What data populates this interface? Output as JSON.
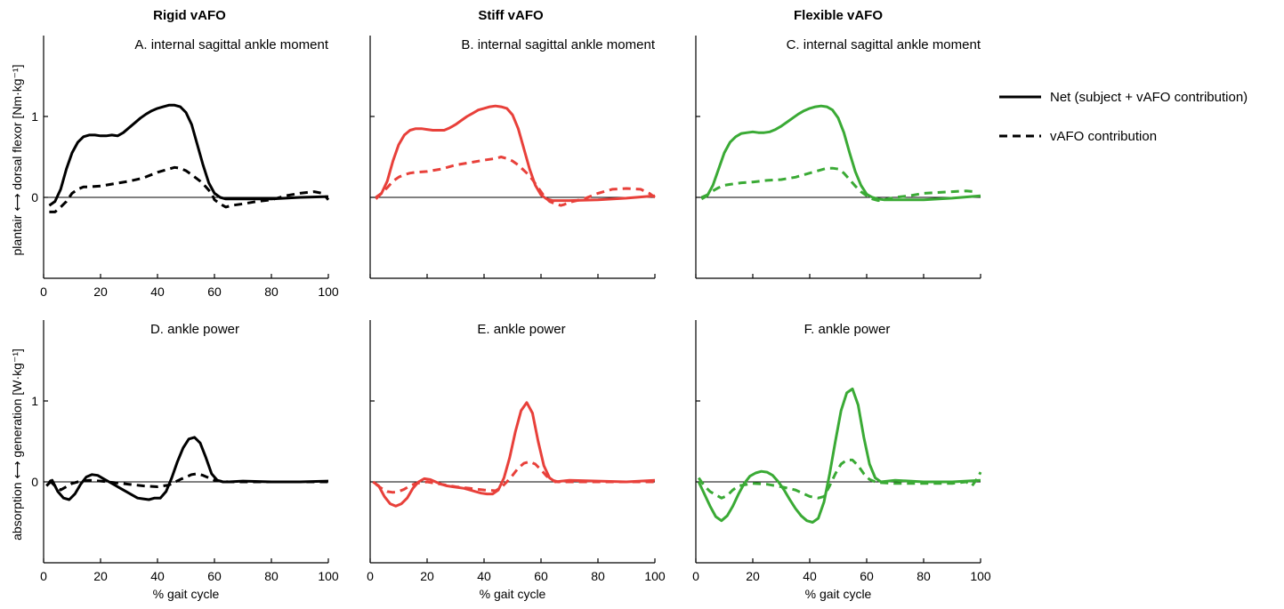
{
  "column_titles": [
    "Rigid vAFO",
    "Stiff vAFO",
    "Flexible vAFO"
  ],
  "row_ylabels": [
    "plantair ⟷ dorsal flexor [Nm·kg⁻¹]",
    "absorption ⟷ generation [W·kg⁻¹]"
  ],
  "legend": [
    {
      "label": "Net (subject + vAFO contribution)",
      "style": "solid"
    },
    {
      "label": "vAFO contribution",
      "style": "dashed"
    }
  ],
  "colors": {
    "rigid": "#000000",
    "stiff": "#e8403a",
    "flexible": "#3aaa35"
  },
  "chart_data": [
    {
      "type": "line",
      "panel": "A",
      "title": "A. internal sagittal ankle moment",
      "column": 0,
      "row": 0,
      "color": "#000000",
      "xlabel": "",
      "xlim": [
        0,
        100
      ],
      "ylim": [
        -1,
        2
      ],
      "xticks": [
        0,
        20,
        40,
        60,
        80,
        100
      ],
      "yticks": [
        0,
        1
      ],
      "series": [
        {
          "name": "Net (subject + vAFO contribution)",
          "style": "solid",
          "x": [
            2,
            4,
            6,
            8,
            10,
            12,
            14,
            16,
            18,
            20,
            22,
            24,
            26,
            28,
            30,
            32,
            34,
            36,
            38,
            40,
            42,
            44,
            46,
            48,
            50,
            52,
            54,
            56,
            58,
            60,
            62,
            64,
            70,
            80,
            90,
            100
          ],
          "y": [
            -0.1,
            -0.05,
            0.1,
            0.35,
            0.55,
            0.68,
            0.75,
            0.77,
            0.77,
            0.76,
            0.76,
            0.77,
            0.76,
            0.8,
            0.86,
            0.92,
            0.98,
            1.03,
            1.07,
            1.1,
            1.12,
            1.14,
            1.14,
            1.12,
            1.05,
            0.9,
            0.65,
            0.4,
            0.18,
            0.05,
            0.0,
            -0.02,
            -0.02,
            -0.02,
            0.0,
            0.01
          ]
        },
        {
          "name": "vAFO contribution",
          "style": "dashed",
          "x": [
            2,
            4,
            6,
            8,
            10,
            12,
            14,
            16,
            20,
            25,
            30,
            35,
            40,
            44,
            46,
            48,
            50,
            52,
            55,
            57,
            59,
            60,
            62,
            64,
            66,
            70,
            75,
            80,
            85,
            90,
            95,
            98,
            100
          ],
          "y": [
            -0.18,
            -0.18,
            -0.12,
            -0.05,
            0.05,
            0.1,
            0.13,
            0.13,
            0.14,
            0.17,
            0.2,
            0.24,
            0.31,
            0.35,
            0.37,
            0.36,
            0.33,
            0.28,
            0.2,
            0.13,
            0.05,
            -0.03,
            -0.08,
            -0.12,
            -0.1,
            -0.08,
            -0.05,
            -0.03,
            0.02,
            0.05,
            0.07,
            0.05,
            -0.03
          ]
        }
      ]
    },
    {
      "type": "line",
      "panel": "B",
      "title": "B. internal sagittal ankle moment",
      "column": 1,
      "row": 0,
      "color": "#e8403a",
      "xlabel": "",
      "xlim": [
        0,
        100
      ],
      "ylim": [
        -1,
        2
      ],
      "xticks": [],
      "yticks": [],
      "series": [
        {
          "name": "Net (subject + vAFO contribution)",
          "style": "solid",
          "x": [
            2,
            4,
            6,
            8,
            10,
            12,
            14,
            16,
            18,
            20,
            22,
            24,
            26,
            28,
            30,
            32,
            34,
            36,
            38,
            40,
            42,
            44,
            46,
            48,
            50,
            52,
            54,
            56,
            58,
            60,
            62,
            64,
            70,
            80,
            90,
            100
          ],
          "y": [
            0.0,
            0.05,
            0.2,
            0.45,
            0.65,
            0.77,
            0.83,
            0.85,
            0.85,
            0.84,
            0.83,
            0.83,
            0.83,
            0.86,
            0.9,
            0.95,
            1.0,
            1.04,
            1.08,
            1.1,
            1.12,
            1.13,
            1.12,
            1.1,
            1.02,
            0.85,
            0.6,
            0.35,
            0.15,
            0.03,
            -0.02,
            -0.04,
            -0.04,
            -0.03,
            -0.01,
            0.02
          ]
        },
        {
          "name": "vAFO contribution",
          "style": "dashed",
          "x": [
            2,
            4,
            6,
            8,
            10,
            12,
            14,
            16,
            20,
            25,
            30,
            35,
            40,
            44,
            46,
            48,
            50,
            52,
            55,
            57,
            59,
            61,
            63,
            65,
            67,
            68,
            70,
            75,
            80,
            85,
            90,
            95,
            98,
            100
          ],
          "y": [
            -0.02,
            0.05,
            0.12,
            0.2,
            0.25,
            0.28,
            0.3,
            0.31,
            0.32,
            0.35,
            0.4,
            0.43,
            0.46,
            0.48,
            0.5,
            0.48,
            0.45,
            0.4,
            0.3,
            0.22,
            0.12,
            0.02,
            -0.05,
            -0.08,
            -0.1,
            -0.09,
            -0.06,
            -0.02,
            0.05,
            0.1,
            0.11,
            0.1,
            0.05,
            0.0
          ]
        }
      ]
    },
    {
      "type": "line",
      "panel": "C",
      "title": "C. internal sagittal ankle moment",
      "column": 2,
      "row": 0,
      "color": "#3aaa35",
      "xlabel": "",
      "xlim": [
        0,
        100
      ],
      "ylim": [
        -1,
        2
      ],
      "xticks": [],
      "yticks": [],
      "series": [
        {
          "name": "Net (subject + vAFO contribution)",
          "style": "solid",
          "x": [
            2,
            4,
            6,
            8,
            10,
            12,
            14,
            16,
            18,
            20,
            22,
            24,
            26,
            28,
            30,
            32,
            34,
            36,
            38,
            40,
            42,
            44,
            46,
            48,
            50,
            52,
            54,
            56,
            58,
            60,
            62,
            64,
            66,
            70,
            80,
            90,
            100
          ],
          "y": [
            -0.02,
            0.02,
            0.15,
            0.35,
            0.55,
            0.68,
            0.75,
            0.79,
            0.8,
            0.81,
            0.8,
            0.8,
            0.81,
            0.84,
            0.88,
            0.93,
            0.98,
            1.03,
            1.07,
            1.1,
            1.12,
            1.13,
            1.12,
            1.08,
            0.98,
            0.8,
            0.55,
            0.32,
            0.15,
            0.04,
            0.0,
            -0.02,
            -0.03,
            -0.03,
            -0.03,
            -0.01,
            0.02
          ]
        },
        {
          "name": "vAFO contribution",
          "style": "dashed",
          "x": [
            2,
            4,
            6,
            8,
            10,
            12,
            14,
            16,
            20,
            25,
            30,
            35,
            40,
            44,
            46,
            48,
            50,
            52,
            54,
            56,
            58,
            60,
            62,
            64,
            66,
            70,
            75,
            80,
            85,
            90,
            95,
            98
          ],
          "y": [
            0.0,
            0.03,
            0.08,
            0.12,
            0.15,
            0.16,
            0.17,
            0.18,
            0.19,
            0.21,
            0.22,
            0.25,
            0.3,
            0.34,
            0.36,
            0.36,
            0.35,
            0.3,
            0.22,
            0.14,
            0.07,
            0.02,
            -0.02,
            -0.04,
            -0.03,
            0.0,
            0.02,
            0.05,
            0.06,
            0.07,
            0.08,
            0.07
          ]
        }
      ]
    },
    {
      "type": "line",
      "panel": "D",
      "title": "D. ankle power",
      "column": 0,
      "row": 1,
      "color": "#000000",
      "xlabel": "% gait cycle",
      "xlim": [
        0,
        100
      ],
      "ylim": [
        -1,
        2
      ],
      "xticks": [
        0,
        20,
        40,
        60,
        80,
        100
      ],
      "yticks": [
        0,
        1
      ],
      "series": [
        {
          "name": "Net (subject + vAFO contribution)",
          "style": "solid",
          "x": [
            1,
            3,
            5,
            7,
            9,
            11,
            13,
            15,
            17,
            19,
            21,
            23,
            25,
            27,
            29,
            31,
            33,
            35,
            37,
            39,
            41,
            43,
            45,
            47,
            49,
            51,
            53,
            55,
            57,
            59,
            61,
            63,
            65,
            70,
            80,
            90,
            100
          ],
          "y": [
            -0.05,
            0.02,
            -0.12,
            -0.2,
            -0.22,
            -0.15,
            -0.03,
            0.06,
            0.09,
            0.08,
            0.04,
            0.0,
            -0.04,
            -0.08,
            -0.12,
            -0.16,
            -0.2,
            -0.21,
            -0.22,
            -0.2,
            -0.2,
            -0.12,
            0.05,
            0.25,
            0.42,
            0.53,
            0.55,
            0.48,
            0.3,
            0.1,
            0.02,
            0.0,
            0.0,
            0.01,
            0.0,
            0.0,
            0.01
          ]
        },
        {
          "name": "vAFO contribution",
          "style": "dashed",
          "x": [
            2,
            4,
            6,
            8,
            10,
            12,
            14,
            16,
            20,
            25,
            30,
            35,
            40,
            44,
            48,
            52,
            54,
            56,
            58,
            60,
            62,
            65,
            70,
            80,
            90,
            100
          ],
          "y": [
            0.02,
            -0.05,
            -0.1,
            -0.06,
            -0.02,
            0.0,
            0.01,
            0.02,
            0.01,
            -0.01,
            -0.03,
            -0.05,
            -0.06,
            -0.04,
            0.03,
            0.09,
            0.1,
            0.08,
            0.05,
            0.02,
            0.01,
            0.0,
            0.0,
            0.0,
            0.0,
            0.0
          ]
        }
      ]
    },
    {
      "type": "line",
      "panel": "E",
      "title": "E. ankle power",
      "column": 1,
      "row": 1,
      "color": "#e8403a",
      "xlabel": "% gait cycle",
      "xlim": [
        0,
        100
      ],
      "ylim": [
        -1,
        2
      ],
      "xticks": [
        0,
        20,
        40,
        60,
        80,
        100
      ],
      "yticks": [],
      "series": [
        {
          "name": "Net (subject + vAFO contribution)",
          "style": "solid",
          "x": [
            1,
            3,
            5,
            7,
            9,
            11,
            13,
            15,
            17,
            19,
            21,
            23,
            25,
            27,
            29,
            31,
            33,
            35,
            37,
            39,
            41,
            43,
            45,
            47,
            49,
            51,
            53,
            55,
            57,
            59,
            61,
            63,
            65,
            70,
            80,
            90,
            100
          ],
          "y": [
            0.0,
            -0.05,
            -0.18,
            -0.27,
            -0.3,
            -0.27,
            -0.2,
            -0.08,
            0.0,
            0.04,
            0.03,
            0.0,
            -0.03,
            -0.05,
            -0.06,
            -0.07,
            -0.08,
            -0.1,
            -0.12,
            -0.14,
            -0.15,
            -0.15,
            -0.1,
            0.05,
            0.3,
            0.62,
            0.88,
            0.98,
            0.85,
            0.5,
            0.2,
            0.05,
            0.0,
            0.02,
            0.01,
            0.0,
            0.02
          ]
        },
        {
          "name": "vAFO contribution",
          "style": "dashed",
          "x": [
            2,
            4,
            6,
            8,
            10,
            12,
            14,
            16,
            20,
            25,
            30,
            35,
            40,
            44,
            46,
            48,
            50,
            52,
            54,
            56,
            58,
            60,
            62,
            64,
            66,
            70,
            80,
            90,
            100
          ],
          "y": [
            -0.03,
            -0.08,
            -0.12,
            -0.13,
            -0.12,
            -0.09,
            -0.05,
            -0.02,
            0.0,
            -0.03,
            -0.06,
            -0.08,
            -0.1,
            -0.11,
            -0.07,
            0.0,
            0.08,
            0.17,
            0.23,
            0.25,
            0.22,
            0.15,
            0.07,
            0.02,
            0.0,
            0.0,
            0.0,
            0.0,
            0.0
          ]
        }
      ]
    },
    {
      "type": "line",
      "panel": "F",
      "title": "F. ankle power",
      "column": 2,
      "row": 1,
      "color": "#3aaa35",
      "xlabel": "% gait cycle",
      "xlim": [
        0,
        100
      ],
      "ylim": [
        -1,
        2
      ],
      "xticks": [
        0,
        20,
        40,
        60,
        80,
        100
      ],
      "yticks": [],
      "series": [
        {
          "name": "Net (subject + vAFO contribution)",
          "style": "solid",
          "x": [
            1,
            3,
            5,
            7,
            9,
            11,
            13,
            15,
            17,
            19,
            21,
            23,
            25,
            27,
            29,
            31,
            33,
            35,
            37,
            39,
            41,
            43,
            45,
            47,
            49,
            51,
            53,
            55,
            57,
            59,
            61,
            63,
            65,
            70,
            80,
            90,
            100
          ],
          "y": [
            0.0,
            -0.15,
            -0.3,
            -0.43,
            -0.48,
            -0.42,
            -0.3,
            -0.15,
            -0.02,
            0.07,
            0.11,
            0.13,
            0.12,
            0.08,
            0.0,
            -0.1,
            -0.22,
            -0.33,
            -0.42,
            -0.48,
            -0.5,
            -0.45,
            -0.25,
            0.1,
            0.5,
            0.88,
            1.1,
            1.15,
            0.95,
            0.55,
            0.22,
            0.05,
            0.0,
            0.02,
            0.0,
            0.0,
            0.02
          ]
        },
        {
          "name": "vAFO contribution",
          "style": "dashed",
          "x": [
            1,
            3,
            5,
            7,
            9,
            11,
            13,
            15,
            20,
            25,
            30,
            35,
            40,
            43,
            45,
            47,
            49,
            51,
            53,
            55,
            57,
            59,
            61,
            63,
            65,
            70,
            80,
            90,
            95,
            97,
            99,
            100
          ],
          "y": [
            0.05,
            -0.05,
            -0.12,
            -0.16,
            -0.2,
            -0.17,
            -0.1,
            -0.05,
            -0.02,
            -0.03,
            -0.06,
            -0.1,
            -0.18,
            -0.2,
            -0.18,
            -0.05,
            0.1,
            0.22,
            0.27,
            0.27,
            0.2,
            0.1,
            0.03,
            0.0,
            -0.01,
            -0.02,
            -0.02,
            -0.02,
            0.0,
            -0.05,
            0.05,
            0.12
          ]
        }
      ]
    }
  ]
}
